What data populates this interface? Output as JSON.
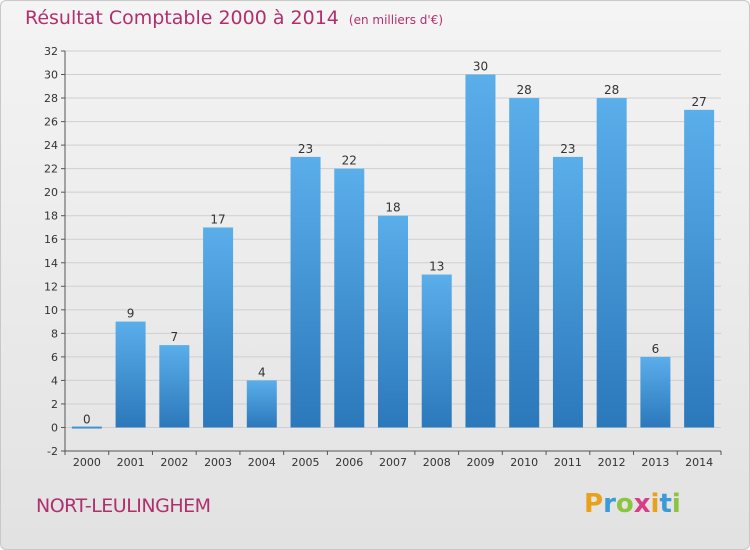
{
  "title": "Résultat Comptable 2000 à 2014",
  "subtitle": "(en milliers d'€)",
  "place_name": "NORT-LEULINGHEM",
  "logo": {
    "letters": [
      "P",
      "r",
      "o",
      "x",
      "i",
      "t",
      "i"
    ],
    "colors": [
      "#e8a21a",
      "#3b9bd6",
      "#8bc53f",
      "#d93d86",
      "#e8a21a",
      "#3b9bd6",
      "#8bc53f"
    ]
  },
  "chart_data": {
    "type": "bar",
    "categories": [
      "2000",
      "2001",
      "2002",
      "2003",
      "2004",
      "2005",
      "2006",
      "2007",
      "2008",
      "2009",
      "2010",
      "2011",
      "2012",
      "2013",
      "2014"
    ],
    "values": [
      0,
      9,
      7,
      17,
      4,
      23,
      22,
      18,
      13,
      30,
      28,
      23,
      28,
      6,
      27
    ],
    "ylim": [
      -2,
      32
    ],
    "yticks": [
      -2,
      0,
      2,
      4,
      6,
      8,
      10,
      12,
      14,
      16,
      18,
      20,
      22,
      24,
      26,
      28,
      30,
      32
    ],
    "grid": true,
    "bar_color": "#4a9fe0",
    "bar_color_dark": "#2e7dbf"
  }
}
